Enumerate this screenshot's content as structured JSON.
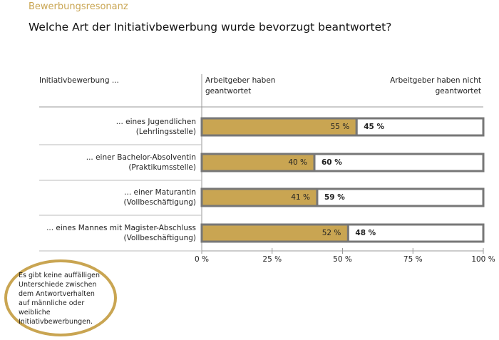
{
  "chart_data": {
    "type": "stacked-bar-horizontal",
    "supertitle": "Bewerbungsresonanz",
    "title": "Welche Art der Initiativbewerbung wurde bevorzugt beantwortet?",
    "y_label": "Initiativbewerbung ...",
    "categories": [
      [
        "... eines Jugendlichen",
        "(Lehrlingsstelle)"
      ],
      [
        "... einer Bachelor-Absolventin",
        "(Praktikumsstelle)"
      ],
      [
        "... einer Maturantin",
        "(Vollbeschäftigung)"
      ],
      [
        "... eines Mannes mit Magister-Abschluss",
        "(Vollbeschäftigung)"
      ]
    ],
    "series": [
      {
        "name": "Arbeitgeber haben geantwortet",
        "color": "#c9a552",
        "values": [
          55,
          40,
          41,
          52
        ],
        "value_labels": [
          "55 %",
          "40 %",
          "41 %",
          "52 %"
        ]
      },
      {
        "name": "Arbeitgeber haben nicht geantwortet",
        "color": "#ffffff",
        "values": [
          45,
          60,
          59,
          48
        ],
        "value_labels": [
          "45 %",
          "60 %",
          "59 %",
          "48 %"
        ]
      }
    ],
    "xlim": [
      0,
      100
    ],
    "xticks": [
      {
        "value": 0,
        "label": "0 %"
      },
      {
        "value": 25,
        "label": "25 %"
      },
      {
        "value": 50,
        "label": "50 %"
      },
      {
        "value": 75,
        "label": "75 %"
      },
      {
        "value": 100,
        "label": "100 %"
      }
    ],
    "annotation": "Es gibt keine auffälligen Unterschiede zwischen dem Antwortverhalten auf männliche oder weibliche Initiativbewerbungen."
  }
}
